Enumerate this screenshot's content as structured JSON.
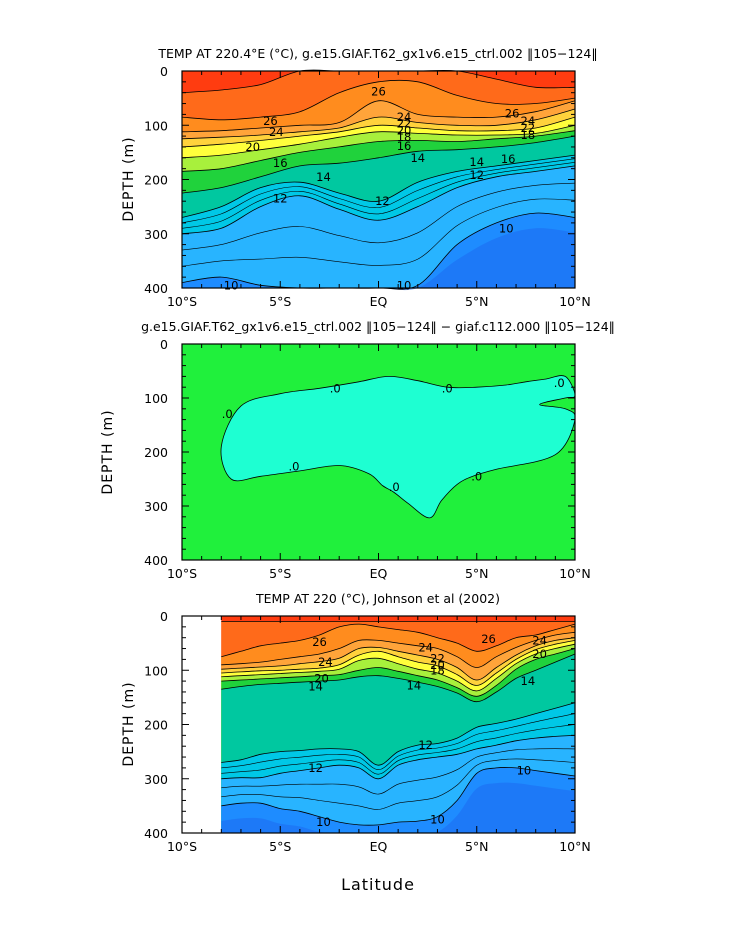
{
  "colors": {
    "r28": "#ff3c10",
    "r26": "#ff6a1a",
    "r24": "#ff8c1e",
    "r22": "#ffa43a",
    "r20": "#ffd23c",
    "r18": "#ffff3c",
    "r16": "#a8f03c",
    "r14": "#20d23c",
    "r12": "#00c8a0",
    "r11": "#00c8e6",
    "r10": "#28b4ff",
    "r9": "#1e8cff",
    "r8": "#1e6af0",
    "diff_pos": "#20f03c",
    "diff_neg": "#1effd2",
    "line": "#000000"
  },
  "xlabel": "Latitude",
  "ylabel": "DEPTH  (m)",
  "xticklabels": [
    "10°S",
    "5°S",
    "EQ",
    "5°N",
    "10°N"
  ],
  "yticklabels": [
    "0",
    "100",
    "200",
    "300",
    "400"
  ],
  "chart_data": [
    {
      "type": "heatmap",
      "title": "TEMP AT 220.4°E (°C), g.e15.GIAF.T62_gx1v6.e15_ctrl.002 ‖105−124‖",
      "xlabel": "Latitude",
      "ylabel": "DEPTH  (m)",
      "xlim": [
        -10,
        10
      ],
      "ylim": [
        400,
        0
      ],
      "lat": [
        -10,
        -8,
        -6,
        -4,
        -2,
        0,
        2,
        4,
        6,
        8,
        10
      ],
      "depth_isotherms": {
        "28": [
          40,
          35,
          25,
          0,
          0,
          0,
          0,
          0,
          15,
          30,
          30
        ],
        "26": [
          85,
          90,
          85,
          75,
          40,
          20,
          20,
          45,
          60,
          60,
          50
        ],
        "24": [
          112,
          110,
          105,
          100,
          95,
          55,
          80,
          85,
          85,
          75,
          55
        ],
        "22": [
          125,
          122,
          118,
          112,
          105,
          85,
          95,
          100,
          100,
          90,
          70
        ],
        "20": [
          140,
          135,
          128,
          120,
          112,
          100,
          105,
          110,
          110,
          105,
          85
        ],
        "18": [
          160,
          155,
          145,
          135,
          122,
          112,
          115,
          118,
          118,
          115,
          100
        ],
        "16": [
          185,
          180,
          165,
          150,
          140,
          130,
          128,
          130,
          125,
          120,
          110
        ],
        "14": [
          225,
          215,
          195,
          175,
          170,
          160,
          148,
          145,
          140,
          132,
          120
        ],
        "12": [
          270,
          250,
          215,
          205,
          225,
          240,
          205,
          185,
          175,
          165,
          155
        ],
        "11": [
          300,
          290,
          250,
          230,
          255,
          275,
          250,
          215,
          195,
          185,
          175
        ],
        "10": [
          390,
          380,
          395,
          400,
          400,
          400,
          395,
          320,
          280,
          262,
          270
        ]
      },
      "contour_labels": [
        {
          "value": "26",
          "lat": -5.5,
          "depth": 92
        },
        {
          "value": "24",
          "lat": -5.2,
          "depth": 112
        },
        {
          "value": "20",
          "lat": -6.4,
          "depth": 140
        },
        {
          "value": "16",
          "lat": -5.0,
          "depth": 170
        },
        {
          "value": "14",
          "lat": -2.8,
          "depth": 195
        },
        {
          "value": "12",
          "lat": -5.0,
          "depth": 235
        },
        {
          "value": "26",
          "lat": 0.0,
          "depth": 38
        },
        {
          "value": "24",
          "lat": 1.3,
          "depth": 85
        },
        {
          "value": "22",
          "lat": 1.3,
          "depth": 97
        },
        {
          "value": "20",
          "lat": 1.3,
          "depth": 110
        },
        {
          "value": "18",
          "lat": 1.3,
          "depth": 122
        },
        {
          "value": "16",
          "lat": 1.3,
          "depth": 138
        },
        {
          "value": "14",
          "lat": 2.0,
          "depth": 160
        },
        {
          "value": "12",
          "lat": 0.2,
          "depth": 240
        },
        {
          "value": "26",
          "lat": 6.8,
          "depth": 78
        },
        {
          "value": "24",
          "lat": 7.6,
          "depth": 92
        },
        {
          "value": "22",
          "lat": 7.6,
          "depth": 105
        },
        {
          "value": "18",
          "lat": 7.6,
          "depth": 118
        },
        {
          "value": "16",
          "lat": 6.6,
          "depth": 162
        },
        {
          "value": "14",
          "lat": 5.0,
          "depth": 168
        },
        {
          "value": "12",
          "lat": 5.0,
          "depth": 192
        },
        {
          "value": "10",
          "lat": 6.5,
          "depth": 290
        },
        {
          "value": "10",
          "lat": -7.5,
          "depth": 395
        },
        {
          "value": "10",
          "lat": 1.3,
          "depth": 395
        }
      ]
    },
    {
      "type": "heatmap",
      "title": "g.e15.GIAF.T62_gx1v6.e15_ctrl.002 ‖105−124‖ − giaf.c112.000 ‖105−124‖",
      "xlabel": "Latitude",
      "ylabel": "DEPTH  (m)",
      "xlim": [
        -10,
        10
      ],
      "ylim": [
        400,
        0
      ],
      "zero_contour": {
        "lat": [
          -8,
          -7,
          -5,
          -3,
          -1,
          0.5,
          2,
          3.5,
          5,
          6.5,
          7.5,
          8.5,
          9.5,
          10,
          9.5,
          8.2,
          9.5,
          10,
          9,
          6,
          4.8,
          4,
          3.2,
          2.6,
          1.5,
          0.8,
          0.2,
          -0.5,
          -2,
          -4,
          -6,
          -7.5,
          -8
        ],
        "depth": [
          190,
          115,
          92,
          82,
          70,
          60,
          68,
          80,
          80,
          76,
          70,
          65,
          60,
          95,
          100,
          112,
          120,
          140,
          205,
          232,
          245,
          260,
          290,
          322,
          295,
          275,
          262,
          240,
          225,
          235,
          245,
          250,
          190
        ]
      },
      "contour_labels": [
        {
          "value": ".0",
          "lat": -7.7,
          "depth": 130
        },
        {
          "value": ".0",
          "lat": -2.2,
          "depth": 82
        },
        {
          "value": ".0",
          "lat": 3.5,
          "depth": 82
        },
        {
          "value": ".0",
          "lat": 9.2,
          "depth": 72
        },
        {
          "value": ".0",
          "lat": -4.3,
          "depth": 227
        },
        {
          "value": ".0",
          "lat": 0.8,
          "depth": 265
        },
        {
          "value": ".0",
          "lat": 5.0,
          "depth": 245
        }
      ]
    },
    {
      "type": "heatmap",
      "title": "TEMP AT 220 (°C), Johnson et al (2002)",
      "xlabel": "Latitude",
      "ylabel": "DEPTH  (m)",
      "xlim": [
        -10,
        10
      ],
      "ylim": [
        400,
        0
      ],
      "data_xlim": [
        -8,
        10
      ],
      "lat": [
        -8,
        -7,
        -6,
        -5,
        -4,
        -3,
        -2,
        -1,
        0,
        1,
        2,
        3,
        4,
        5,
        6,
        7,
        8,
        9,
        10
      ],
      "depth_isotherms": {
        "28": [
          10,
          10,
          10,
          10,
          10,
          10,
          10,
          10,
          10,
          10,
          10,
          10,
          10,
          10,
          10,
          10,
          10,
          10,
          10
        ],
        "26": [
          75,
          65,
          55,
          50,
          45,
          35,
          20,
          15,
          20,
          25,
          30,
          40,
          50,
          65,
          55,
          40,
          35,
          25,
          15
        ],
        "24": [
          90,
          88,
          85,
          80,
          75,
          70,
          60,
          45,
          45,
          50,
          55,
          60,
          75,
          95,
          75,
          58,
          45,
          35,
          30
        ],
        "22": [
          98,
          96,
          94,
          92,
          88,
          84,
          78,
          60,
          58,
          65,
          72,
          80,
          95,
          118,
          95,
          72,
          55,
          45,
          40
        ],
        "20": [
          105,
          103,
          101,
          100,
          98,
          96,
          90,
          72,
          65,
          75,
          85,
          92,
          108,
          128,
          105,
          80,
          62,
          52,
          45
        ],
        "18": [
          112,
          110,
          108,
          106,
          104,
          102,
          98,
          82,
          78,
          88,
          98,
          105,
          120,
          138,
          115,
          88,
          70,
          60,
          52
        ],
        "16": [
          120,
          118,
          116,
          114,
          112,
          110,
          108,
          100,
          95,
          102,
          110,
          118,
          132,
          148,
          128,
          98,
          80,
          70,
          60
        ],
        "14": [
          135,
          130,
          126,
          124,
          122,
          120,
          118,
          112,
          110,
          115,
          122,
          130,
          142,
          158,
          140,
          115,
          100,
          85,
          70
        ],
        "12": [
          270,
          265,
          255,
          250,
          248,
          245,
          245,
          250,
          275,
          250,
          238,
          235,
          225,
          205,
          198,
          190,
          180,
          170,
          160
        ],
        "11": [
          300,
          298,
          298,
          290,
          285,
          280,
          275,
          280,
          300,
          275,
          265,
          260,
          255,
          245,
          238,
          230,
          225,
          222,
          220
        ],
        "10": [
          350,
          345,
          345,
          355,
          360,
          370,
          380,
          385,
          385,
          380,
          378,
          370,
          340,
          290,
          280,
          280,
          285,
          290,
          295
        ]
      },
      "contour_labels": [
        {
          "value": "26",
          "lat": -3.0,
          "depth": 48
        },
        {
          "value": "24",
          "lat": -2.7,
          "depth": 85
        },
        {
          "value": "20",
          "lat": -2.9,
          "depth": 115
        },
        {
          "value": "14",
          "lat": -3.2,
          "depth": 130
        },
        {
          "value": "24",
          "lat": 2.4,
          "depth": 58
        },
        {
          "value": "22",
          "lat": 3.0,
          "depth": 78
        },
        {
          "value": "20",
          "lat": 3.0,
          "depth": 90
        },
        {
          "value": "18",
          "lat": 3.0,
          "depth": 100
        },
        {
          "value": "14",
          "lat": 1.8,
          "depth": 128
        },
        {
          "value": "26",
          "lat": 5.6,
          "depth": 42
        },
        {
          "value": "24",
          "lat": 8.2,
          "depth": 45
        },
        {
          "value": "20",
          "lat": 8.2,
          "depth": 70
        },
        {
          "value": "14",
          "lat": 7.6,
          "depth": 120
        },
        {
          "value": "12",
          "lat": 2.4,
          "depth": 238
        },
        {
          "value": "12",
          "lat": -3.2,
          "depth": 280
        },
        {
          "value": "10",
          "lat": 7.4,
          "depth": 285
        },
        {
          "value": "10",
          "lat": -2.8,
          "depth": 380
        },
        {
          "value": "10",
          "lat": 3.0,
          "depth": 375
        }
      ]
    }
  ]
}
